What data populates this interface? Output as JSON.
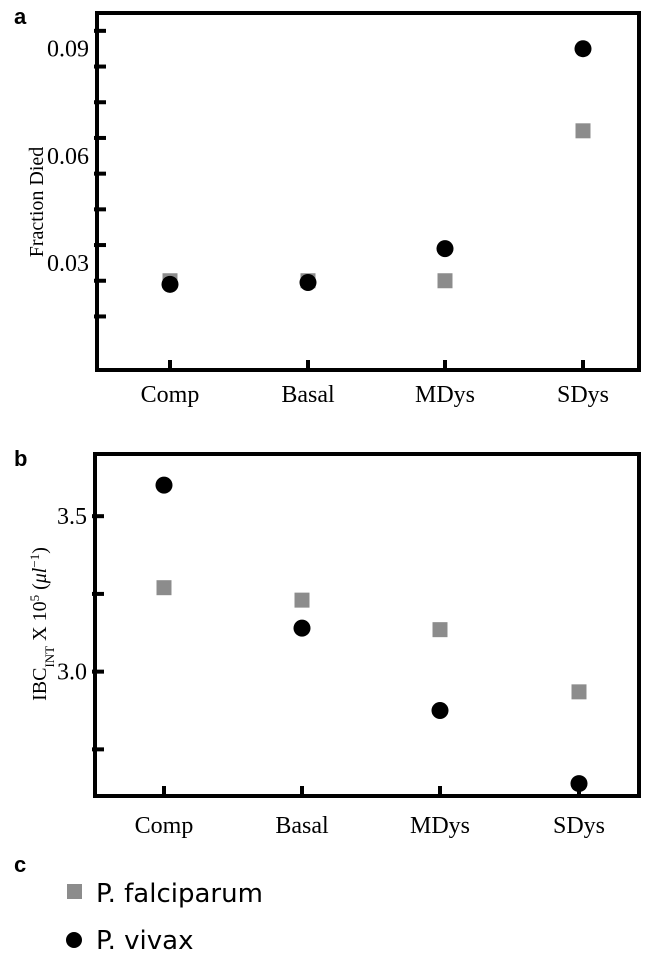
{
  "chart_data": [
    {
      "panel": "a",
      "type": "scatter",
      "categories": [
        "Comp",
        "Basal",
        "MDys",
        "SDys"
      ],
      "ylabel": "Fraction Died",
      "ylim": [
        0.0,
        0.1
      ],
      "yticks_labeled": [
        "0.03",
        "0.06",
        "0.09"
      ],
      "series": [
        {
          "name": "P. falciparum",
          "marker": "square",
          "color": "#8c8c8c",
          "values": [
            0.025,
            0.025,
            0.025,
            0.067
          ]
        },
        {
          "name": "P. vivax",
          "marker": "circle",
          "color": "#000000",
          "values": [
            0.024,
            0.0245,
            0.034,
            0.09
          ]
        }
      ]
    },
    {
      "panel": "b",
      "type": "scatter",
      "categories": [
        "Comp",
        "Basal",
        "MDys",
        "SDys"
      ],
      "ylabel": {
        "base": "IBC",
        "sub": "INT",
        "mid": " X 10",
        "exp": "5",
        "unit_open": " (",
        "unit_mu": "μl",
        "unit_exp": "−1",
        "unit_close": ")"
      },
      "ylim": [
        2.6,
        3.7
      ],
      "yticks_labeled": [
        "3.0",
        "3.5"
      ],
      "series": [
        {
          "name": "P. falciparum",
          "marker": "square",
          "color": "#8c8c8c",
          "values": [
            3.27,
            3.23,
            3.135,
            2.935
          ]
        },
        {
          "name": "P. vivax",
          "marker": "circle",
          "color": "#000000",
          "values": [
            3.6,
            3.14,
            2.875,
            2.64
          ]
        }
      ]
    }
  ],
  "panel_letters": {
    "a": "a",
    "b": "b",
    "c": "c"
  },
  "legend": {
    "items": [
      {
        "label": "P. falciparum",
        "marker": "square",
        "color": "#8c8c8c"
      },
      {
        "label": "P. vivax",
        "marker": "circle",
        "color": "#000000"
      }
    ]
  }
}
